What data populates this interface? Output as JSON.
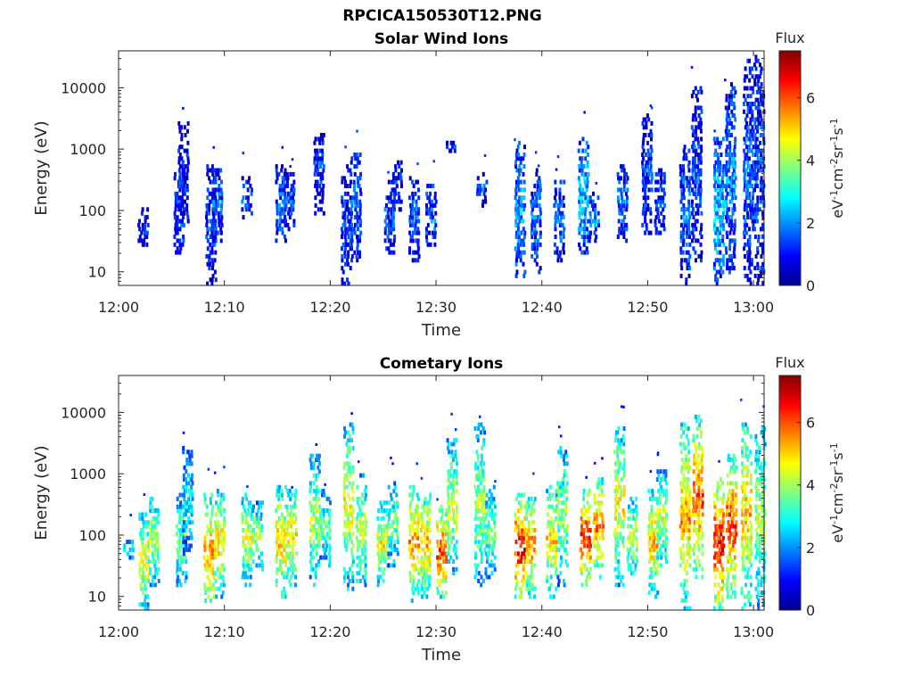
{
  "figure_title": "RPCICA150530T12.PNG",
  "colormap": [
    "#00008f",
    "#0000ff",
    "#0080ff",
    "#00ffff",
    "#80ff80",
    "#ffff00",
    "#ff8000",
    "#ff0000",
    "#800000"
  ],
  "chart_data": [
    {
      "type": "heatmap",
      "title": "Solar Wind Ions",
      "xlabel": "Time",
      "ylabel": "Energy (eV)",
      "x_ticks": [
        "12:00",
        "12:10",
        "12:20",
        "12:30",
        "12:40",
        "12:50",
        "13:00"
      ],
      "xlim_minutes": [
        0,
        61
      ],
      "y_scale": "log",
      "y_ticks": [
        "10",
        "100",
        "1000",
        "10000"
      ],
      "ylim": [
        6,
        40000
      ],
      "colorbar": {
        "title": "Flux",
        "label": "eV-1cm-2sr-1s-1",
        "ticks": [
          "0",
          "2",
          "4",
          "6"
        ],
        "range": [
          0,
          7.5
        ]
      },
      "bursts": [
        {
          "t": 2.2,
          "lo": 25,
          "hi": 110,
          "v": 1.1
        },
        {
          "t": 5.6,
          "lo": 20,
          "hi": 500,
          "v": 1.3
        },
        {
          "t": 6.0,
          "lo": 60,
          "hi": 2800,
          "v": 1.0
        },
        {
          "t": 8.6,
          "lo": 6,
          "hi": 600,
          "v": 1.2
        },
        {
          "t": 9.2,
          "lo": 30,
          "hi": 500,
          "v": 1.5
        },
        {
          "t": 12.0,
          "lo": 70,
          "hi": 380,
          "v": 1.4
        },
        {
          "t": 15.2,
          "lo": 30,
          "hi": 550,
          "v": 1.6
        },
        {
          "t": 16.0,
          "lo": 50,
          "hi": 450,
          "v": 1.4
        },
        {
          "t": 18.8,
          "lo": 80,
          "hi": 2100,
          "v": 1.1
        },
        {
          "t": 21.4,
          "lo": 6,
          "hi": 600,
          "v": 1.2
        },
        {
          "t": 22.3,
          "lo": 15,
          "hi": 900,
          "v": 1.6
        },
        {
          "t": 25.5,
          "lo": 20,
          "hi": 300,
          "v": 1.4
        },
        {
          "t": 26.2,
          "lo": 100,
          "hi": 700,
          "v": 1.1
        },
        {
          "t": 27.8,
          "lo": 15,
          "hi": 350,
          "v": 1.5
        },
        {
          "t": 29.4,
          "lo": 25,
          "hi": 280,
          "v": 1.6
        },
        {
          "t": 31.2,
          "lo": 900,
          "hi": 1300,
          "v": 1.0
        },
        {
          "t": 34.2,
          "lo": 110,
          "hi": 450,
          "v": 1.3
        },
        {
          "t": 37.8,
          "lo": 8,
          "hi": 1300,
          "v": 2.0
        },
        {
          "t": 39.3,
          "lo": 10,
          "hi": 500,
          "v": 1.6
        },
        {
          "t": 41.5,
          "lo": 15,
          "hi": 350,
          "v": 1.5
        },
        {
          "t": 43.8,
          "lo": 20,
          "hi": 1700,
          "v": 2.3
        },
        {
          "t": 44.8,
          "lo": 30,
          "hi": 200,
          "v": 1.8
        },
        {
          "t": 47.5,
          "lo": 30,
          "hi": 600,
          "v": 1.6
        },
        {
          "t": 49.8,
          "lo": 40,
          "hi": 3800,
          "v": 1.2
        },
        {
          "t": 51.0,
          "lo": 40,
          "hi": 500,
          "v": 1.3
        },
        {
          "t": 53.4,
          "lo": 6,
          "hi": 1400,
          "v": 1.7
        },
        {
          "t": 54.5,
          "lo": 15,
          "hi": 10000,
          "v": 1.4
        },
        {
          "t": 56.6,
          "lo": 6,
          "hi": 1500,
          "v": 2.3
        },
        {
          "t": 57.7,
          "lo": 10,
          "hi": 12000,
          "v": 1.8
        },
        {
          "t": 59.4,
          "lo": 6,
          "hi": 30000,
          "v": 1.5
        },
        {
          "t": 60.4,
          "lo": 6,
          "hi": 35000,
          "v": 1.3
        }
      ]
    },
    {
      "type": "heatmap",
      "title": "Cometary Ions",
      "xlabel": "Time",
      "ylabel": "Energy (eV)",
      "x_ticks": [
        "12:00",
        "12:10",
        "12:20",
        "12:30",
        "12:40",
        "12:50",
        "13:00"
      ],
      "xlim_minutes": [
        0,
        61
      ],
      "y_scale": "log",
      "y_ticks": [
        "10",
        "100",
        "1000",
        "10000"
      ],
      "ylim": [
        6,
        40000
      ],
      "colorbar": {
        "title": "Flux",
        "label": "eV-1cm-2sr-1s-1",
        "ticks": [
          "0",
          "2",
          "4",
          "6"
        ],
        "range": [
          0,
          7.5
        ]
      },
      "bursts": [
        {
          "t": 0.8,
          "lo": 40,
          "hi": 90,
          "v": 3.0
        },
        {
          "t": 2.3,
          "lo": 6,
          "hi": 250,
          "v": 4.5
        },
        {
          "t": 3.2,
          "lo": 15,
          "hi": 450,
          "v": 4.2
        },
        {
          "t": 5.8,
          "lo": 15,
          "hi": 500,
          "v": 3.6
        },
        {
          "t": 6.4,
          "lo": 40,
          "hi": 2800,
          "v": 2.6
        },
        {
          "t": 8.4,
          "lo": 6,
          "hi": 500,
          "v": 5.4
        },
        {
          "t": 9.4,
          "lo": 10,
          "hi": 600,
          "v": 4.8
        },
        {
          "t": 12.0,
          "lo": 15,
          "hi": 500,
          "v": 4.2
        },
        {
          "t": 13.0,
          "lo": 25,
          "hi": 350,
          "v": 4.0
        },
        {
          "t": 15.2,
          "lo": 10,
          "hi": 650,
          "v": 5.0
        },
        {
          "t": 16.2,
          "lo": 15,
          "hi": 550,
          "v": 4.8
        },
        {
          "t": 18.4,
          "lo": 15,
          "hi": 2100,
          "v": 4.0
        },
        {
          "t": 19.4,
          "lo": 30,
          "hi": 600,
          "v": 3.4
        },
        {
          "t": 21.6,
          "lo": 12,
          "hi": 8000,
          "v": 4.5
        },
        {
          "t": 22.8,
          "lo": 15,
          "hi": 1000,
          "v": 4.0
        },
        {
          "t": 24.8,
          "lo": 15,
          "hi": 350,
          "v": 4.5
        },
        {
          "t": 25.8,
          "lo": 30,
          "hi": 800,
          "v": 3.5
        },
        {
          "t": 27.8,
          "lo": 8,
          "hi": 700,
          "v": 5.3
        },
        {
          "t": 28.9,
          "lo": 10,
          "hi": 550,
          "v": 5.0
        },
        {
          "t": 30.4,
          "lo": 10,
          "hi": 300,
          "v": 6.0
        },
        {
          "t": 31.4,
          "lo": 20,
          "hi": 4000,
          "v": 4.2
        },
        {
          "t": 34.0,
          "lo": 15,
          "hi": 6500,
          "v": 4.0
        },
        {
          "t": 35.0,
          "lo": 20,
          "hi": 700,
          "v": 3.6
        },
        {
          "t": 37.8,
          "lo": 8,
          "hi": 500,
          "v": 6.4
        },
        {
          "t": 38.8,
          "lo": 10,
          "hi": 450,
          "v": 5.4
        },
        {
          "t": 40.8,
          "lo": 10,
          "hi": 650,
          "v": 4.8
        },
        {
          "t": 41.8,
          "lo": 15,
          "hi": 3000,
          "v": 3.8
        },
        {
          "t": 44.0,
          "lo": 15,
          "hi": 550,
          "v": 6.2
        },
        {
          "t": 45.2,
          "lo": 20,
          "hi": 1000,
          "v": 5.5
        },
        {
          "t": 47.2,
          "lo": 15,
          "hi": 6000,
          "v": 4.6
        },
        {
          "t": 48.4,
          "lo": 20,
          "hi": 450,
          "v": 4.2
        },
        {
          "t": 50.4,
          "lo": 10,
          "hi": 600,
          "v": 5.0
        },
        {
          "t": 51.2,
          "lo": 30,
          "hi": 1200,
          "v": 4.2
        },
        {
          "t": 53.4,
          "lo": 6,
          "hi": 7000,
          "v": 5.2
        },
        {
          "t": 54.6,
          "lo": 20,
          "hi": 9000,
          "v": 5.8
        },
        {
          "t": 56.6,
          "lo": 6,
          "hi": 900,
          "v": 6.4
        },
        {
          "t": 57.8,
          "lo": 10,
          "hi": 2200,
          "v": 6.0
        },
        {
          "t": 59.2,
          "lo": 6,
          "hi": 8000,
          "v": 5.0
        },
        {
          "t": 60.5,
          "lo": 6,
          "hi": 6000,
          "v": 4.0
        }
      ]
    }
  ]
}
